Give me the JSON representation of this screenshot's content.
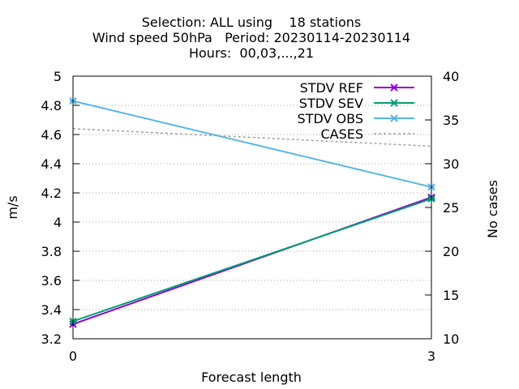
{
  "chart_data": {
    "type": "line",
    "title_lines": [
      "Selection: ALL using    18 stations",
      "Wind speed 50hPa   Period: 20230114-20230114",
      "Hours:  00,03,...,21"
    ],
    "xlabel": "Forecast length",
    "ylabel": "m/s",
    "y2label": "No cases",
    "x": [
      0,
      3
    ],
    "xticks": [
      "0",
      "3"
    ],
    "ylim": [
      3.2,
      5.0
    ],
    "yticks": [
      "3.2",
      "3.4",
      "3.6",
      "3.8",
      "4",
      "4.2",
      "4.4",
      "4.6",
      "4.8",
      "5"
    ],
    "y2lim": [
      10,
      40
    ],
    "y2ticks": [
      "10",
      "15",
      "20",
      "25",
      "30",
      "35",
      "40"
    ],
    "grid": "horizontal dotted",
    "legend_position": "top-right",
    "series": [
      {
        "name": "STDV REF",
        "axis": "y",
        "values": [
          3.3,
          4.17
        ],
        "color": "#9400d3",
        "marker": "x"
      },
      {
        "name": "STDV SEV",
        "axis": "y",
        "values": [
          3.32,
          4.16
        ],
        "color": "#009e73",
        "marker": "x"
      },
      {
        "name": "STDV OBS",
        "axis": "y",
        "values": [
          4.83,
          4.24
        ],
        "color": "#56b4e9",
        "marker": "x"
      },
      {
        "name": "CASES",
        "axis": "y2",
        "values": [
          34,
          32
        ],
        "color": "#a0a0a0",
        "dashed": true
      }
    ]
  }
}
